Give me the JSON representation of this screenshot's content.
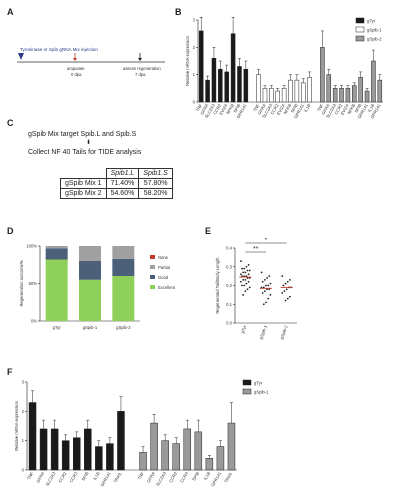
{
  "panel_labels": {
    "A": "A",
    "B": "B",
    "C": "C",
    "D": "D",
    "E": "E",
    "F": "F"
  },
  "panel_a": {
    "injection_label": "Tyrosinase or Spib gRNA Mix injection",
    "amputate_label": "amputate",
    "amputate_day": "0 dpa",
    "assess_label": "assess regeneration",
    "assess_day": "7 dpa"
  },
  "panel_c": {
    "line1": "gSpib Mix target Spib.L and Spib.S",
    "arrow": "⬇",
    "line2": "Collect NF 40 Tails for TIDE analysis",
    "table": {
      "headers": [
        "",
        "Spib1.L",
        "Spib1.S"
      ],
      "rows": [
        [
          "gSpib Mix 1",
          "71.40%",
          "57.80%"
        ],
        [
          "gSpib Mix 2",
          "54.60%",
          "58.20%"
        ]
      ]
    }
  },
  "colors": {
    "black": "#1a1a1a",
    "gray": "#9a9a9a",
    "white": "#ffffff",
    "excellent": "#8fd05a",
    "good": "#4d6079",
    "partial": "#a0a0a0",
    "none": "#c0392b",
    "red_point": "#c0392b"
  },
  "chart_data": [
    {
      "id": "B",
      "type": "bar",
      "ylabel": "Relative mRNA expression",
      "ylim": [
        0,
        3
      ],
      "yticks": [
        "0",
        "1",
        "2",
        "3"
      ],
      "legend": [
        "gTyr",
        "gSpib-1",
        "gSpib-2"
      ],
      "series": [
        {
          "name": "gTyr",
          "fill": "black",
          "x_start": 0,
          "values": [
            2.6,
            0.8,
            1.6,
            1.2,
            1.1,
            2.5,
            1.3,
            1.2
          ],
          "errors": [
            0.5,
            0.15,
            0.4,
            0.3,
            0.25,
            0.6,
            0.3,
            0.3
          ],
          "categories": [
            "TNF",
            "GFRA",
            "SLC2A3",
            "CCR2",
            "EVI2A",
            "NFKB",
            "SPIB",
            "GPR141"
          ]
        },
        {
          "name": "gSpib-1",
          "fill": "white",
          "x_start": 9,
          "values": [
            1.0,
            0.5,
            0.5,
            0.4,
            0.5,
            0.8,
            0.8,
            0.7,
            0.9
          ],
          "errors": [
            0.2,
            0.1,
            0.1,
            0.1,
            0.1,
            0.2,
            0.2,
            0.15,
            0.2
          ],
          "categories": [
            "TNF",
            "GFRA",
            "SLC2A3",
            "CCR2",
            "EVI2A",
            "NFKB",
            "SPIB",
            "GPR141",
            "IL1B"
          ]
        },
        {
          "name": "gSpib-2",
          "fill": "gray",
          "x_start": 19,
          "values": [
            2.0,
            1.0,
            0.5,
            0.5,
            0.5,
            0.6,
            0.9,
            0.4,
            1.5,
            0.8
          ],
          "errors": [
            0.6,
            0.2,
            0.1,
            0.1,
            0.1,
            0.1,
            0.2,
            0.1,
            0.4,
            0.2
          ],
          "categories": [
            "TNF",
            "GFRA",
            "SLC2A3",
            "CCR2",
            "EVI2A",
            "NFKB",
            "SPIB",
            "GPR141",
            "IL1B",
            "GPR141"
          ]
        }
      ]
    },
    {
      "id": "D",
      "type": "bar",
      "stacked": true,
      "ylabel": "Regeneration outcome%",
      "yticks": [
        "0%",
        "50%",
        "100%"
      ],
      "categories": [
        "gTyr",
        "gSpib-1",
        "gSpib-2"
      ],
      "series": [
        {
          "name": "Excellent",
          "color": "excellent",
          "values": [
            82,
            55,
            60
          ]
        },
        {
          "name": "Good",
          "color": "good",
          "values": [
            15,
            25,
            23
          ]
        },
        {
          "name": "Partial",
          "color": "partial",
          "values": [
            3,
            20,
            17
          ]
        },
        {
          "name": "None",
          "color": "none",
          "values": [
            0,
            0,
            0
          ]
        }
      ],
      "legend_order": [
        "None",
        "Partial",
        "Good",
        "Excellent"
      ]
    },
    {
      "id": "E",
      "type": "scatter",
      "ylabel": "Regenerated Tail/Body Length",
      "ylim": [
        0,
        0.4
      ],
      "yticks": [
        "0.0",
        "0.1",
        "0.2",
        "0.3",
        "0.4"
      ],
      "categories": [
        "gTyr",
        "gSpib-1",
        "gSpib-2"
      ],
      "means": [
        0.245,
        0.185,
        0.19
      ],
      "sig": [
        "**",
        "*"
      ],
      "points": [
        [
          0.33,
          0.31,
          0.3,
          0.29,
          0.29,
          0.28,
          0.28,
          0.27,
          0.27,
          0.26,
          0.26,
          0.25,
          0.25,
          0.25,
          0.24,
          0.24,
          0.23,
          0.23,
          0.22,
          0.22,
          0.21,
          0.2,
          0.2,
          0.19,
          0.18,
          0.17,
          0.15
        ],
        [
          0.27,
          0.25,
          0.24,
          0.23,
          0.22,
          0.21,
          0.2,
          0.2,
          0.19,
          0.19,
          0.18,
          0.18,
          0.17,
          0.16,
          0.15,
          0.13,
          0.11,
          0.1
        ],
        [
          0.25,
          0.23,
          0.22,
          0.21,
          0.2,
          0.19,
          0.19,
          0.18,
          0.17,
          0.16,
          0.14,
          0.13,
          0.12
        ]
      ]
    },
    {
      "id": "F",
      "type": "bar",
      "ylabel": "Relative mRNA expression",
      "ylim": [
        0,
        3
      ],
      "yticks": [
        "0",
        "1",
        "2",
        "3"
      ],
      "legend": [
        "gTyr",
        "gSpib-1"
      ],
      "series": [
        {
          "name": "gTyr",
          "fill": "black",
          "x_start": 0,
          "values": [
            2.3,
            1.4,
            1.4,
            1.0,
            1.1,
            1.4,
            0.8,
            0.9,
            2.0
          ],
          "errors": [
            0.4,
            0.3,
            0.3,
            0.2,
            0.2,
            0.3,
            0.2,
            0.2,
            0.5
          ],
          "categories": [
            "TNF",
            "GFRA",
            "SLC2A3",
            "CCR2",
            "CCR3",
            "SPIB",
            "IL1B",
            "GPR141",
            "TRAIL"
          ]
        },
        {
          "name": "gSpib-1",
          "fill": "gray",
          "x_start": 10,
          "values": [
            0.6,
            1.6,
            1.0,
            0.9,
            1.4,
            1.3,
            0.4,
            0.8,
            1.6
          ],
          "errors": [
            0.2,
            0.3,
            0.2,
            0.2,
            0.3,
            0.4,
            0.1,
            0.2,
            0.7
          ],
          "categories": [
            "TNF",
            "GFRA",
            "SLC2A3",
            "CCR2",
            "CCR3",
            "SPIB",
            "IL1B",
            "GPR141",
            "TRAIL"
          ]
        }
      ]
    }
  ]
}
